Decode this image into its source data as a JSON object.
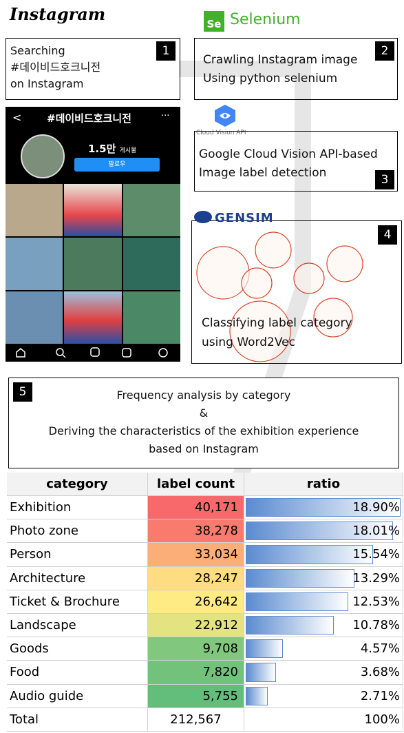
{
  "logos": {
    "instagram": "Instagram",
    "selenium_badge": "Se",
    "selenium": "Selenium",
    "cloud_vision": "Cloud Vision API",
    "gensim": "GENSIM"
  },
  "steps": [
    {
      "number": "1",
      "lines": [
        "Searching",
        "#데이비드호크니전",
        "on Instagram"
      ]
    },
    {
      "number": "2",
      "lines": [
        "Crawling Instagram image",
        "Using python selenium"
      ]
    },
    {
      "number": "3",
      "lines": [
        "Google Cloud Vision API-based",
        "Image label detection"
      ]
    },
    {
      "number": "4",
      "lines": [
        "Classifying label category",
        "using Word2Vec"
      ]
    },
    {
      "number": "5",
      "lines": [
        "Frequency analysis by category",
        "&",
        "Deriving the characteristics of the exhibition experience",
        "based on Instagram"
      ]
    }
  ],
  "phone": {
    "back": "<",
    "handle": "#데이비드호크니전",
    "menu": "···",
    "posts_count": "1.5만",
    "posts_label": "게시물",
    "follow_button": "팔로우"
  },
  "table": {
    "headers": [
      "category",
      "label count",
      "ratio"
    ],
    "rows": [
      {
        "category": "Exhibition",
        "label_count": {
          "value": 40171,
          "label": "40,171"
        },
        "ratio": {
          "value": 18.9,
          "label": "18.90%"
        }
      },
      {
        "category": "Photo zone",
        "label_count": {
          "value": 38278,
          "label": "38,278"
        },
        "ratio": {
          "value": 18.01,
          "label": "18.01%"
        }
      },
      {
        "category": "Person",
        "label_count": {
          "value": 33034,
          "label": "33,034"
        },
        "ratio": {
          "value": 15.54,
          "label": "15.54%"
        }
      },
      {
        "category": "Architecture",
        "label_count": {
          "value": 28247,
          "label": "28,247"
        },
        "ratio": {
          "value": 13.29,
          "label": "13.29%"
        }
      },
      {
        "category": "Ticket & Brochure",
        "label_count": {
          "value": 26642,
          "label": "26,642"
        },
        "ratio": {
          "value": 12.53,
          "label": "12.53%"
        }
      },
      {
        "category": "Landscape",
        "label_count": {
          "value": 22912,
          "label": "22,912"
        },
        "ratio": {
          "value": 10.78,
          "label": "10.78%"
        }
      },
      {
        "category": "Goods",
        "label_count": {
          "value": 9708,
          "label": "9,708"
        },
        "ratio": {
          "value": 4.57,
          "label": "4.57%"
        }
      },
      {
        "category": "Food",
        "label_count": {
          "value": 7820,
          "label": "7,820"
        },
        "ratio": {
          "value": 3.68,
          "label": "3.68%"
        }
      },
      {
        "category": "Audio guide",
        "label_count": {
          "value": 5755,
          "label": "5,755"
        },
        "ratio": {
          "value": 2.71,
          "label": "2.71%"
        }
      }
    ],
    "total": {
      "category": "Total",
      "label_count": "212,567",
      "ratio": "100%"
    }
  }
}
